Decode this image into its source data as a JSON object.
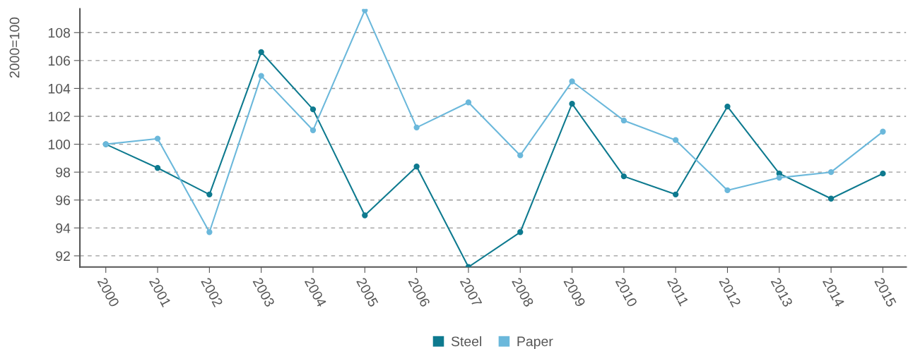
{
  "chart_data": {
    "type": "line",
    "ylabel": "2000=100",
    "categories": [
      "2000",
      "2001",
      "2002",
      "2003",
      "2004",
      "2005",
      "2006",
      "2007",
      "2008",
      "2009",
      "2010",
      "2011",
      "2012",
      "2013",
      "2014",
      "2015"
    ],
    "series": [
      {
        "name": "Steel",
        "color": "#0e7a8f",
        "values": [
          100,
          98.3,
          96.4,
          106.6,
          102.5,
          94.9,
          98.4,
          91.2,
          93.7,
          102.9,
          97.7,
          96.4,
          102.7,
          97.9,
          96.1,
          97.9
        ]
      },
      {
        "name": "Paper",
        "color": "#6bb8db",
        "values": [
          100,
          100.4,
          93.7,
          104.9,
          101.0,
          109.6,
          101.2,
          103.0,
          99.2,
          104.5,
          101.7,
          100.3,
          96.7,
          97.6,
          98.0,
          100.9
        ]
      }
    ],
    "ylim": [
      91.2,
      109.7
    ],
    "yticks": [
      92,
      94,
      96,
      98,
      100,
      102,
      104,
      106,
      108
    ],
    "grid": "y",
    "legend": "bottom",
    "marker": "circle",
    "line_style": "solid"
  }
}
